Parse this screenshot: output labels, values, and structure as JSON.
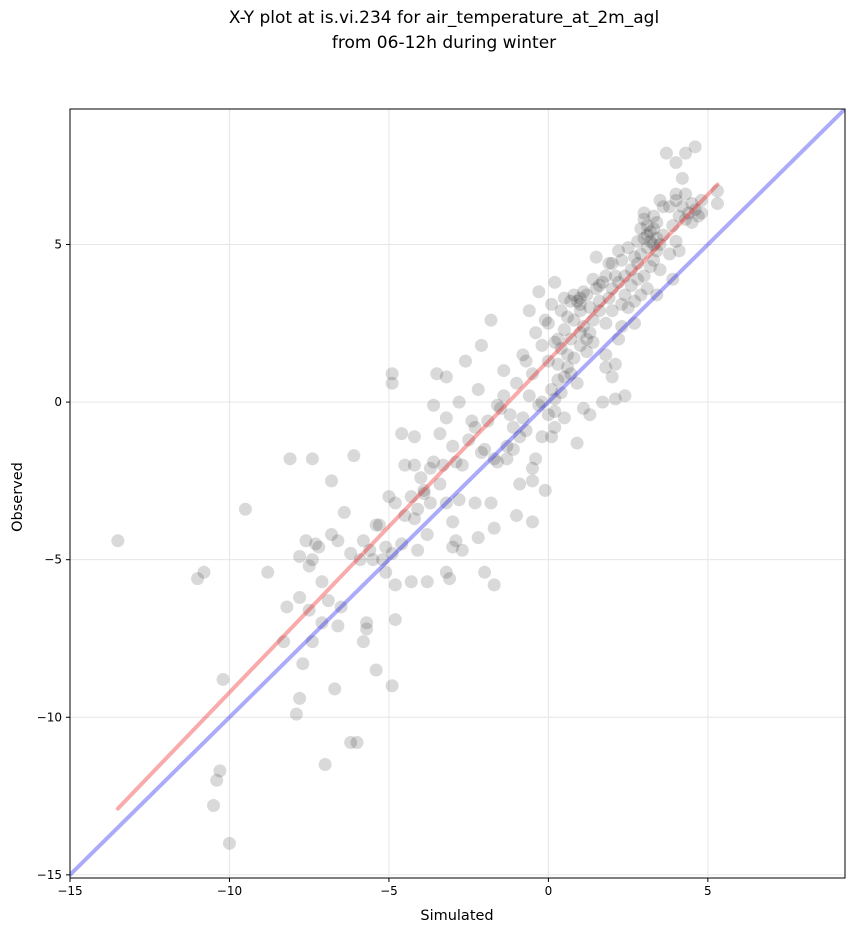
{
  "chart_data": {
    "type": "scatter",
    "title": [
      "X-Y plot at is.vi.234 for air_temperature_at_2m_agl",
      "from 06-12h during winter"
    ],
    "xlabel": "Simulated",
    "ylabel": "Observed",
    "xlim": [
      -15,
      9.3
    ],
    "ylim": [
      -15.1,
      9.3
    ],
    "xticks": [
      -15,
      -10,
      -5,
      0,
      5
    ],
    "yticks": [
      -15,
      -10,
      -5,
      0,
      5
    ],
    "xtick_labels": [
      "−15",
      "−10",
      "−5",
      "0",
      "5"
    ],
    "ytick_labels": [
      "−15",
      "−10",
      "−5",
      "0",
      "5"
    ],
    "grid": true,
    "colors": {
      "points": "#000000",
      "identity_line": "#0000ee",
      "fit_line": "#ee0000",
      "grid": "#e6e6e6"
    },
    "identity_line": {
      "x": [
        -15,
        9.3
      ],
      "y": [
        -15,
        9.3
      ]
    },
    "fit_line": {
      "x": [
        -13.5,
        5.3
      ],
      "y": [
        -12.9,
        6.9
      ]
    },
    "series": [
      {
        "points": [
          [
            -13.5,
            -4.4
          ],
          [
            -11.0,
            -5.6
          ],
          [
            -10.8,
            -5.4
          ],
          [
            -10.2,
            -8.8
          ],
          [
            -10.3,
            -11.7
          ],
          [
            -10.4,
            -12.0
          ],
          [
            -10.5,
            -12.8
          ],
          [
            -10.0,
            -14.0
          ],
          [
            -9.5,
            -3.4
          ],
          [
            -8.8,
            -5.4
          ],
          [
            -8.3,
            -7.6
          ],
          [
            -8.2,
            -6.5
          ],
          [
            -8.1,
            -1.8
          ],
          [
            -7.9,
            -9.9
          ],
          [
            -7.8,
            -9.4
          ],
          [
            -7.8,
            -6.2
          ],
          [
            -7.7,
            -8.3
          ],
          [
            -7.8,
            -4.9
          ],
          [
            -7.6,
            -4.4
          ],
          [
            -7.5,
            -6.6
          ],
          [
            -7.5,
            -5.2
          ],
          [
            -7.4,
            -5.0
          ],
          [
            -7.4,
            -1.8
          ],
          [
            -7.4,
            -7.6
          ],
          [
            -7.3,
            -4.5
          ],
          [
            -7.2,
            -4.6
          ],
          [
            -7.1,
            -5.7
          ],
          [
            -7.1,
            -7.0
          ],
          [
            -7.0,
            -11.5
          ],
          [
            -6.9,
            -6.3
          ],
          [
            -6.8,
            -4.2
          ],
          [
            -6.8,
            -2.5
          ],
          [
            -6.7,
            -9.1
          ],
          [
            -6.6,
            -4.4
          ],
          [
            -6.6,
            -7.1
          ],
          [
            -6.5,
            -6.5
          ],
          [
            -6.4,
            -3.5
          ],
          [
            -6.2,
            -4.8
          ],
          [
            -6.2,
            -10.8
          ],
          [
            -6.1,
            -1.7
          ],
          [
            -6.0,
            -10.8
          ],
          [
            -5.9,
            -5.0
          ],
          [
            -5.8,
            -4.4
          ],
          [
            -5.8,
            -7.6
          ],
          [
            -5.7,
            -7.2
          ],
          [
            -5.7,
            -7.0
          ],
          [
            -5.6,
            -4.7
          ],
          [
            -5.5,
            -5.0
          ],
          [
            -5.4,
            -8.5
          ],
          [
            -5.4,
            -3.9
          ],
          [
            -5.3,
            -3.9
          ],
          [
            -5.2,
            -5.0
          ],
          [
            -5.1,
            -4.6
          ],
          [
            -5.1,
            -5.4
          ],
          [
            -5.0,
            -3.0
          ],
          [
            -4.9,
            0.9
          ],
          [
            -4.9,
            0.6
          ],
          [
            -4.9,
            -4.8
          ],
          [
            -4.8,
            -3.2
          ],
          [
            -4.8,
            -5.8
          ],
          [
            -4.8,
            -6.9
          ],
          [
            -4.9,
            -9.0
          ],
          [
            -4.6,
            -4.5
          ],
          [
            -4.6,
            -1.0
          ],
          [
            -4.5,
            -3.6
          ],
          [
            -4.5,
            -2.0
          ],
          [
            -4.3,
            -3.0
          ],
          [
            -4.3,
            -5.7
          ],
          [
            -4.2,
            -2.0
          ],
          [
            -4.2,
            -1.1
          ],
          [
            -4.2,
            -3.7
          ],
          [
            -4.1,
            -3.4
          ],
          [
            -4.1,
            -4.7
          ],
          [
            -4.0,
            -2.4
          ],
          [
            -3.9,
            -2.8
          ],
          [
            -3.9,
            -2.9
          ],
          [
            -3.8,
            -4.2
          ],
          [
            -3.8,
            -5.7
          ],
          [
            -3.7,
            -2.1
          ],
          [
            -3.7,
            -3.2
          ],
          [
            -3.6,
            -0.1
          ],
          [
            -3.6,
            -1.9
          ],
          [
            -3.5,
            0.9
          ],
          [
            -3.4,
            -1.0
          ],
          [
            -3.4,
            -2.6
          ],
          [
            -3.3,
            -2.0
          ],
          [
            -3.2,
            -3.2
          ],
          [
            -3.2,
            -0.5
          ],
          [
            -3.2,
            0.8
          ],
          [
            -3.2,
            -5.4
          ],
          [
            -3.1,
            -5.6
          ],
          [
            -3.0,
            -1.4
          ],
          [
            -3.0,
            -3.8
          ],
          [
            -3.0,
            -4.6
          ],
          [
            -2.9,
            -4.4
          ],
          [
            -2.9,
            -1.9
          ],
          [
            -2.8,
            -3.1
          ],
          [
            -2.8,
            0.0
          ],
          [
            -2.7,
            -2.0
          ],
          [
            -2.7,
            -4.7
          ],
          [
            -2.6,
            1.3
          ],
          [
            -2.5,
            -1.2
          ],
          [
            -2.4,
            -0.6
          ],
          [
            -2.3,
            -0.8
          ],
          [
            -2.3,
            -3.2
          ],
          [
            -2.2,
            -4.3
          ],
          [
            -2.2,
            0.4
          ],
          [
            -2.1,
            -1.6
          ],
          [
            -2.1,
            1.8
          ],
          [
            -2.0,
            -1.5
          ],
          [
            -2.0,
            -5.4
          ],
          [
            -1.9,
            -0.6
          ],
          [
            -1.8,
            -3.2
          ],
          [
            -1.8,
            2.6
          ],
          [
            -1.7,
            -4.0
          ],
          [
            -1.7,
            -1.8
          ],
          [
            -1.7,
            -5.8
          ],
          [
            -1.6,
            -1.9
          ],
          [
            -1.6,
            -0.1
          ],
          [
            -1.5,
            -0.2
          ],
          [
            -1.4,
            0.2
          ],
          [
            -1.4,
            1.0
          ],
          [
            -1.3,
            -1.4
          ],
          [
            -1.3,
            -1.8
          ],
          [
            -1.2,
            -0.4
          ],
          [
            -1.1,
            -1.5
          ],
          [
            -1.1,
            -0.8
          ],
          [
            -1.0,
            0.6
          ],
          [
            -1.0,
            -3.6
          ],
          [
            -0.9,
            -1.1
          ],
          [
            -0.9,
            -2.6
          ],
          [
            -0.8,
            1.5
          ],
          [
            -0.8,
            -0.5
          ],
          [
            -0.7,
            -0.9
          ],
          [
            -0.7,
            1.3
          ],
          [
            -0.6,
            2.9
          ],
          [
            -0.6,
            0.2
          ],
          [
            -0.5,
            -2.1
          ],
          [
            -0.5,
            -3.8
          ],
          [
            -0.5,
            -2.5
          ],
          [
            -0.5,
            0.9
          ],
          [
            -0.4,
            2.2
          ],
          [
            -0.4,
            -1.8
          ],
          [
            -0.3,
            3.5
          ],
          [
            -0.3,
            -0.1
          ],
          [
            -0.2,
            -1.1
          ],
          [
            -0.2,
            0.0
          ],
          [
            -0.2,
            1.8
          ],
          [
            -0.1,
            2.6
          ],
          [
            -0.1,
            -2.8
          ],
          [
            0.0,
            -0.4
          ],
          [
            0.0,
            1.3
          ],
          [
            0.0,
            2.5
          ],
          [
            0.1,
            0.4
          ],
          [
            0.1,
            -1.1
          ],
          [
            0.1,
            3.1
          ],
          [
            0.2,
            -0.8
          ],
          [
            0.2,
            0.1
          ],
          [
            0.2,
            1.9
          ],
          [
            0.2,
            3.8
          ],
          [
            0.2,
            -0.3
          ],
          [
            0.3,
            2.0
          ],
          [
            0.3,
            1.2
          ],
          [
            0.3,
            0.7
          ],
          [
            0.4,
            2.9
          ],
          [
            0.4,
            0.3
          ],
          [
            0.4,
            1.7
          ],
          [
            0.5,
            0.8
          ],
          [
            0.5,
            -0.5
          ],
          [
            0.5,
            2.3
          ],
          [
            0.5,
            3.3
          ],
          [
            0.6,
            1.5
          ],
          [
            0.6,
            2.7
          ],
          [
            0.6,
            1.1
          ],
          [
            0.7,
            3.2
          ],
          [
            0.7,
            0.9
          ],
          [
            0.7,
            2.0
          ],
          [
            0.8,
            2.6
          ],
          [
            0.8,
            1.4
          ],
          [
            0.8,
            3.4
          ],
          [
            0.9,
            -1.3
          ],
          [
            0.9,
            0.6
          ],
          [
            0.9,
            3.2
          ],
          [
            1.0,
            2.2
          ],
          [
            1.0,
            3.3
          ],
          [
            1.0,
            3.1
          ],
          [
            1.0,
            1.8
          ],
          [
            1.0,
            2.9
          ],
          [
            1.1,
            2.4
          ],
          [
            1.1,
            3.5
          ],
          [
            1.1,
            -0.2
          ],
          [
            1.2,
            2.0
          ],
          [
            1.2,
            1.6
          ],
          [
            1.2,
            3.4
          ],
          [
            1.3,
            -0.4
          ],
          [
            1.3,
            3.0
          ],
          [
            1.3,
            2.2
          ],
          [
            1.4,
            3.9
          ],
          [
            1.4,
            2.6
          ],
          [
            1.4,
            1.9
          ],
          [
            1.5,
            3.6
          ],
          [
            1.5,
            4.6
          ],
          [
            1.6,
            3.2
          ],
          [
            1.6,
            3.7
          ],
          [
            1.6,
            2.9
          ],
          [
            1.7,
            3.8
          ],
          [
            1.7,
            0.0
          ],
          [
            1.8,
            1.5
          ],
          [
            1.8,
            4.0
          ],
          [
            1.8,
            2.5
          ],
          [
            1.8,
            1.1
          ],
          [
            1.9,
            4.4
          ],
          [
            1.9,
            3.3
          ],
          [
            2.0,
            3.6
          ],
          [
            2.0,
            0.8
          ],
          [
            2.0,
            4.4
          ],
          [
            2.0,
            2.9
          ],
          [
            2.1,
            1.2
          ],
          [
            2.1,
            4.0
          ],
          [
            2.1,
            0.1
          ],
          [
            2.2,
            3.8
          ],
          [
            2.2,
            2.0
          ],
          [
            2.2,
            4.8
          ],
          [
            2.3,
            2.4
          ],
          [
            2.3,
            3.1
          ],
          [
            2.3,
            4.5
          ],
          [
            2.4,
            3.4
          ],
          [
            2.4,
            0.2
          ],
          [
            2.4,
            4.0
          ],
          [
            2.5,
            3.0
          ],
          [
            2.5,
            4.9
          ],
          [
            2.6,
            3.7
          ],
          [
            2.6,
            4.2
          ],
          [
            2.7,
            4.6
          ],
          [
            2.7,
            3.2
          ],
          [
            2.7,
            2.5
          ],
          [
            2.8,
            3.9
          ],
          [
            2.8,
            5.1
          ],
          [
            2.8,
            4.4
          ],
          [
            2.9,
            3.4
          ],
          [
            2.9,
            5.5
          ],
          [
            2.9,
            4.7
          ],
          [
            3.0,
            5.8
          ],
          [
            3.0,
            4.0
          ],
          [
            3.0,
            5.2
          ],
          [
            3.0,
            6.0
          ],
          [
            3.1,
            3.6
          ],
          [
            3.1,
            4.9
          ],
          [
            3.1,
            5.3
          ],
          [
            3.1,
            5.6
          ],
          [
            3.2,
            4.3
          ],
          [
            3.2,
            5.1
          ],
          [
            3.2,
            5.4
          ],
          [
            3.3,
            5.5
          ],
          [
            3.3,
            4.5
          ],
          [
            3.3,
            5.0
          ],
          [
            3.3,
            5.9
          ],
          [
            3.4,
            5.2
          ],
          [
            3.4,
            3.4
          ],
          [
            3.4,
            4.8
          ],
          [
            3.4,
            5.7
          ],
          [
            3.5,
            6.4
          ],
          [
            3.5,
            5.0
          ],
          [
            3.5,
            4.2
          ],
          [
            3.6,
            6.2
          ],
          [
            3.6,
            5.3
          ],
          [
            3.7,
            7.9
          ],
          [
            3.8,
            6.2
          ],
          [
            3.8,
            4.7
          ],
          [
            3.9,
            5.6
          ],
          [
            3.9,
            3.9
          ],
          [
            4.0,
            7.6
          ],
          [
            4.0,
            6.6
          ],
          [
            4.0,
            6.4
          ],
          [
            4.0,
            5.1
          ],
          [
            4.1,
            5.9
          ],
          [
            4.1,
            4.8
          ],
          [
            4.2,
            6.2
          ],
          [
            4.2,
            7.1
          ],
          [
            4.3,
            5.8
          ],
          [
            4.3,
            6.6
          ],
          [
            4.3,
            7.9
          ],
          [
            4.4,
            6.0
          ],
          [
            4.5,
            5.7
          ],
          [
            4.5,
            6.3
          ],
          [
            4.6,
            8.1
          ],
          [
            4.6,
            6.1
          ],
          [
            4.7,
            5.9
          ],
          [
            4.8,
            6.4
          ],
          [
            4.8,
            6.0
          ],
          [
            5.3,
            6.7
          ],
          [
            5.3,
            6.3
          ]
        ]
      }
    ]
  }
}
